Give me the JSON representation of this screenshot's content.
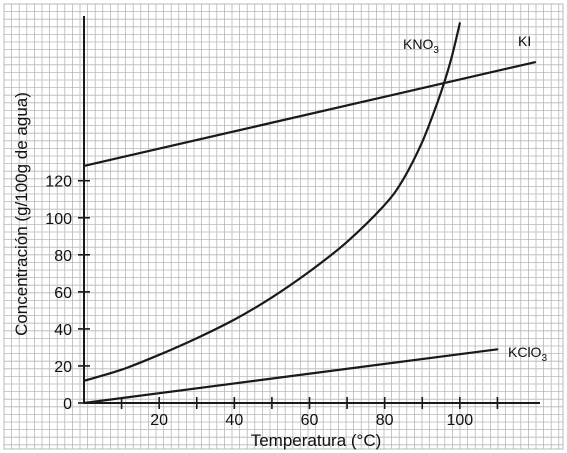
{
  "chart_data": {
    "type": "line",
    "xlabel": "Temperatura (°C)",
    "ylabel": "Concentración (g/100g de agua)",
    "xlim": [
      0,
      120
    ],
    "ylim": [
      0,
      210
    ],
    "x_ticks": [
      0,
      10,
      20,
      30,
      40,
      50,
      60,
      70,
      80,
      90,
      100,
      110
    ],
    "x_tick_labels": [
      "20",
      "40",
      "60",
      "80",
      "100"
    ],
    "x_tick_label_values": [
      20,
      40,
      60,
      80,
      100
    ],
    "y_ticks": [
      0,
      20,
      40,
      60,
      80,
      100,
      120
    ],
    "y_tick_labels": [
      "0",
      "20",
      "40",
      "60",
      "80",
      "100",
      "120"
    ],
    "grid": true,
    "grid_color": "#b8b8b8",
    "line_color": "#1a1a1a",
    "series": [
      {
        "name": "KI",
        "label_main": "KI",
        "label_sub": "",
        "x": [
          0,
          120
        ],
        "y": [
          128,
          184
        ]
      },
      {
        "name": "KNO3",
        "label_main": "KNO",
        "label_sub": "3",
        "x": [
          0,
          10,
          20,
          30,
          40,
          50,
          60,
          70,
          80,
          85,
          90,
          94,
          96,
          98,
          100
        ],
        "y": [
          12,
          18,
          26,
          35,
          45,
          57,
          71,
          87,
          107,
          121,
          141,
          162,
          174,
          188,
          205
        ]
      },
      {
        "name": "KClO3",
        "label_main": "KClO",
        "label_sub": "3",
        "x": [
          0,
          110
        ],
        "y": [
          0,
          29
        ]
      }
    ]
  }
}
